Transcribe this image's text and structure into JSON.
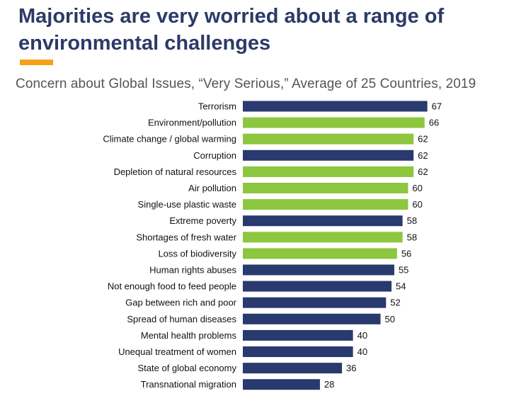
{
  "header": {
    "title": "Majorities are very worried about a range of environmental challenges",
    "subtitle": "Concern about Global Issues, “Very Serious,” Average of 25 Countries, 2019",
    "accent_color": "#f5a11a",
    "title_color": "#2b3a67"
  },
  "chart_data": {
    "type": "bar",
    "orientation": "horizontal",
    "title": "Concern about Global Issues, “Very Serious,” Average of 25 Countries, 2019",
    "xlabel": "",
    "ylabel": "",
    "xlim": [
      0,
      70
    ],
    "grid": false,
    "data_labels": true,
    "colors": {
      "environmental": "#8dc63f",
      "other": "#283a6e"
    },
    "categories": [
      "Terrorism",
      "Environment/pollution",
      "Climate change / global warming",
      "Corruption",
      "Depletion of natural resources",
      "Air pollution",
      "Single-use plastic waste",
      "Extreme poverty",
      "Shortages of fresh water",
      "Loss of biodiversity",
      "Human rights abuses",
      "Not enough food to feed people",
      "Gap between rich and poor",
      "Spread of human diseases",
      "Mental health problems",
      "Unequal treatment of women",
      "State of global economy",
      "Transnational migration"
    ],
    "values": [
      67,
      66,
      62,
      62,
      62,
      60,
      60,
      58,
      58,
      56,
      55,
      54,
      52,
      50,
      40,
      40,
      36,
      28
    ],
    "groups": [
      "other",
      "environmental",
      "environmental",
      "other",
      "environmental",
      "environmental",
      "environmental",
      "other",
      "environmental",
      "environmental",
      "other",
      "other",
      "other",
      "other",
      "other",
      "other",
      "other",
      "other"
    ]
  }
}
